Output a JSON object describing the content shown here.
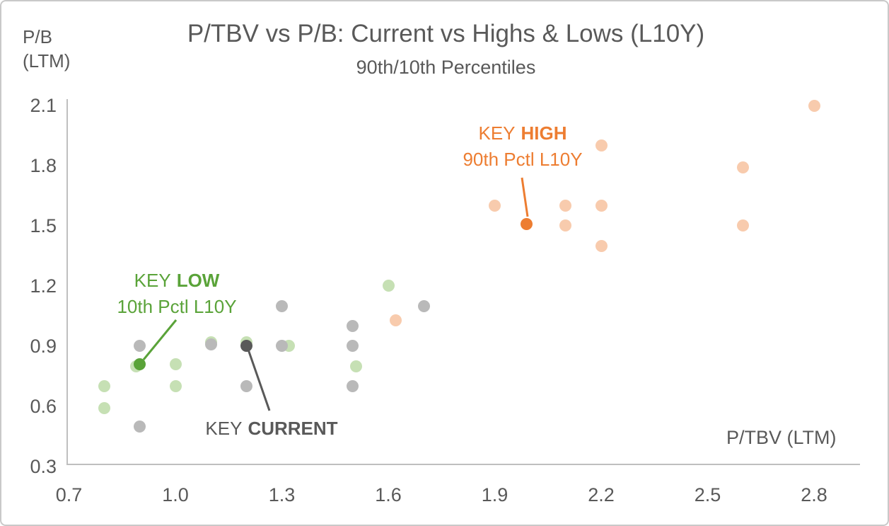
{
  "chart_data": {
    "type": "scatter",
    "title": "P/TBV vs P/B: Current vs Highs & Lows (L10Y)",
    "subtitle": "90th/10th Percentiles",
    "x_axis": {
      "label": "P/TBV (LTM)",
      "range": [
        0.7,
        2.8
      ],
      "ticks": [
        0.7,
        1.0,
        1.3,
        1.6,
        1.9,
        2.2,
        2.5,
        2.8
      ],
      "grid": false
    },
    "y_axis": {
      "label_line1": "P/B",
      "label_line2": "(LTM)",
      "range": [
        0.3,
        2.1
      ],
      "ticks": [
        2.1,
        1.8,
        1.5,
        1.2,
        0.9,
        0.6,
        0.3
      ],
      "grid": false
    },
    "series": [
      {
        "name": "low_10th_pctl",
        "color": "#c6e0b4",
        "points": [
          [
            0.8,
            0.7
          ],
          [
            0.8,
            0.59
          ],
          [
            0.89,
            0.8
          ],
          [
            1.0,
            0.81
          ],
          [
            1.0,
            0.7
          ],
          [
            1.1,
            0.92
          ],
          [
            1.2,
            0.92
          ],
          [
            1.32,
            0.9
          ],
          [
            1.51,
            0.8
          ],
          [
            1.6,
            1.2
          ]
        ]
      },
      {
        "name": "high_90th_pctl",
        "color": "#f8cbad",
        "points": [
          [
            1.62,
            1.03
          ],
          [
            1.9,
            1.6
          ],
          [
            2.1,
            1.6
          ],
          [
            2.1,
            1.5
          ],
          [
            2.2,
            1.9
          ],
          [
            2.2,
            1.6
          ],
          [
            2.2,
            1.4
          ],
          [
            2.6,
            1.79
          ],
          [
            2.6,
            1.5
          ],
          [
            2.8,
            2.1
          ]
        ]
      },
      {
        "name": "current",
        "color": "#b9b9b9",
        "points": [
          [
            0.9,
            0.9
          ],
          [
            0.9,
            0.5
          ],
          [
            1.1,
            0.91
          ],
          [
            1.2,
            0.7
          ],
          [
            1.3,
            1.1
          ],
          [
            1.3,
            0.9
          ],
          [
            1.5,
            1.0
          ],
          [
            1.5,
            0.9
          ],
          [
            1.5,
            0.7
          ],
          [
            1.7,
            1.1
          ]
        ]
      },
      {
        "name": "key_high",
        "color": "#ed7d31",
        "points": [
          [
            1.99,
            1.51
          ]
        ]
      },
      {
        "name": "key_low",
        "color": "#5aa339",
        "points": [
          [
            0.9,
            0.81
          ]
        ]
      },
      {
        "name": "key_current",
        "color": "#595959",
        "points": [
          [
            1.2,
            0.9
          ]
        ]
      }
    ],
    "annotations": {
      "key_high": {
        "prefix": "KEY",
        "bold": "HIGH",
        "line2": "90th Pctl L10Y",
        "color": "#ed7d31",
        "point": [
          1.99,
          1.51
        ]
      },
      "key_low": {
        "prefix": "KEY",
        "bold": "LOW",
        "line2": "10th Pctl L10Y",
        "color": "#5aa339",
        "point": [
          0.9,
          0.81
        ]
      },
      "key_current": {
        "prefix": "KEY",
        "bold": "CURRENT",
        "color": "#595959",
        "point": [
          1.2,
          0.9
        ]
      }
    },
    "legend_position": "none"
  }
}
